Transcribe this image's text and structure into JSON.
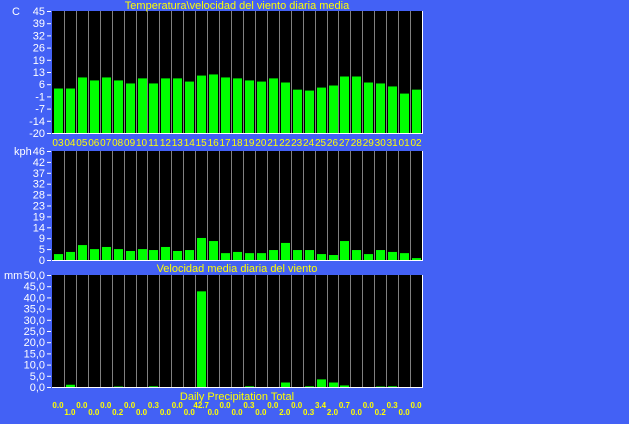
{
  "colors": {
    "background": "#4361f5",
    "plot": "#000000",
    "bar": "#00ff00",
    "separator": "#808080",
    "label": "#ffff00",
    "axis_text": "#ffffff"
  },
  "chart_data": [
    {
      "type": "bar",
      "title": "Temperatura\\velocidad del viento diaria media",
      "ylabel": "C",
      "ylim": [
        -20,
        45
      ],
      "yticks": [
        "45",
        "39",
        "32",
        "26",
        "19",
        "13",
        "6",
        "-1",
        "-7",
        "-14",
        "-20"
      ],
      "grid": false,
      "categories": [
        "03",
        "04",
        "05",
        "06",
        "07",
        "08",
        "09",
        "10",
        "11",
        "12",
        "13",
        "14",
        "15",
        "16",
        "17",
        "18",
        "19",
        "20",
        "21",
        "22",
        "23",
        "24",
        "25",
        "26",
        "27",
        "28",
        "29",
        "30",
        "31",
        "01",
        "02"
      ],
      "values": [
        3.7,
        3.7,
        9.6,
        8.0,
        9.6,
        8.0,
        6.4,
        9.1,
        6.4,
        9.1,
        9.1,
        7.4,
        10.6,
        11.2,
        9.6,
        9.1,
        8.0,
        7.4,
        9.1,
        6.9,
        3.1,
        2.6,
        4.2,
        5.3,
        10.1,
        10.1,
        6.9,
        6.4,
        4.8,
        1.0,
        3.1
      ]
    },
    {
      "type": "bar",
      "title": "Velocidad media diaria del viento",
      "ylabel": "kph",
      "ylim": [
        0,
        46
      ],
      "yticks": [
        "46",
        "42",
        "37",
        "32",
        "28",
        "23",
        "19",
        "14",
        "9",
        "5",
        "0"
      ],
      "grid": false,
      "categories": [
        "03",
        "04",
        "05",
        "06",
        "07",
        "08",
        "09",
        "10",
        "11",
        "12",
        "13",
        "14",
        "15",
        "16",
        "17",
        "18",
        "19",
        "20",
        "21",
        "22",
        "23",
        "24",
        "25",
        "26",
        "27",
        "28",
        "29",
        "30",
        "31",
        "01",
        "02"
      ],
      "values": [
        2.5,
        3.4,
        6.3,
        4.6,
        5.5,
        4.6,
        3.8,
        4.6,
        4.2,
        5.5,
        3.8,
        4.2,
        9.3,
        8.0,
        2.9,
        3.4,
        2.9,
        2.9,
        4.2,
        7.2,
        4.2,
        4.2,
        2.5,
        2.1,
        8.0,
        4.2,
        2.5,
        4.2,
        3.4,
        2.9,
        0.8
      ]
    },
    {
      "type": "bar",
      "title": "Daily Precipitation Total",
      "ylabel": "mm",
      "ylim": [
        0,
        50
      ],
      "yticks": [
        "50,0",
        "45,0",
        "40,0",
        "35,0",
        "30,0",
        "25,0",
        "20,0",
        "15,0",
        "10,0",
        "5,0",
        "0,0"
      ],
      "grid": false,
      "categories": [
        "03",
        "04",
        "05",
        "06",
        "07",
        "08",
        "09",
        "10",
        "11",
        "12",
        "13",
        "14",
        "15",
        "16",
        "17",
        "18",
        "19",
        "20",
        "21",
        "22",
        "23",
        "24",
        "25",
        "26",
        "27",
        "28",
        "29",
        "30",
        "31",
        "01",
        "02"
      ],
      "values": [
        0.0,
        1.0,
        0.0,
        0.0,
        0.0,
        0.2,
        0.0,
        0.0,
        0.3,
        0.0,
        0.0,
        0.0,
        42.7,
        0.0,
        0.0,
        0.0,
        0.3,
        0.0,
        0.0,
        2.0,
        0.0,
        0.3,
        3.4,
        2.0,
        0.7,
        0.0,
        0.0,
        0.2,
        0.3,
        0.0,
        0.0
      ],
      "value_labels": [
        "0.0",
        "1.0",
        "0.0",
        "0.0",
        "0.0",
        "0.2",
        "0.0",
        "0.0",
        "0.3",
        "0.0",
        "0.0",
        "0.0",
        "42.7",
        "0.0",
        "0.0",
        "0.0",
        "0.3",
        "0.0",
        "0.0",
        "2.0",
        "0.0",
        "0.3",
        "3.4",
        "2.0",
        "0.7",
        "0.0",
        "0.0",
        "0.2",
        "0.3",
        "0.0",
        "0.0"
      ]
    }
  ]
}
